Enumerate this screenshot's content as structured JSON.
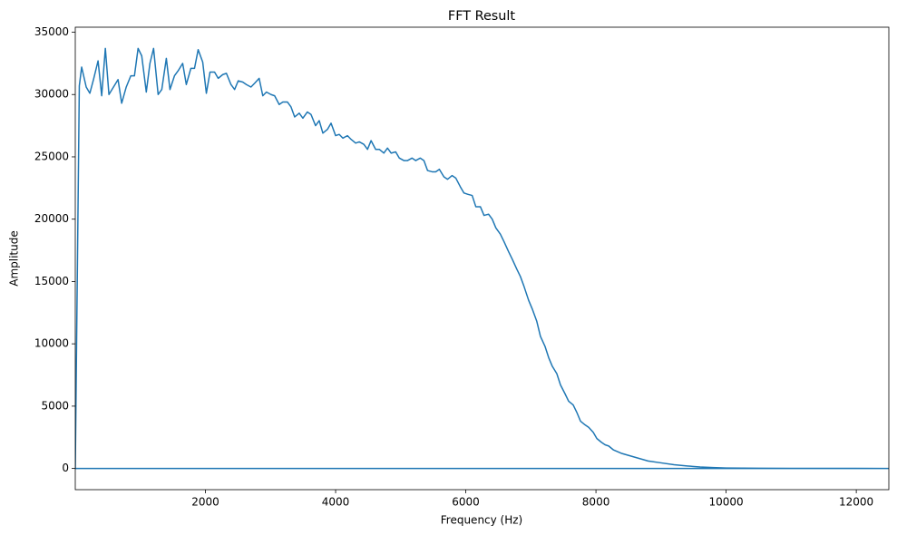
{
  "chart_data": {
    "type": "line",
    "title": "FFT Result",
    "x_label": "Frequency (Hz)",
    "y_label": "Amplitude",
    "xlim": [
      0,
      12500
    ],
    "ylim": [
      -1700,
      35400
    ],
    "xticks": [
      2000,
      4000,
      6000,
      8000,
      10000,
      12000
    ],
    "yticks": [
      0,
      5000,
      10000,
      15000,
      20000,
      25000,
      30000,
      35000
    ],
    "grid": false,
    "x": [
      0,
      62,
      98,
      168,
      224,
      280,
      350,
      406,
      462,
      517,
      587,
      657,
      713,
      783,
      853,
      909,
      965,
      1021,
      1091,
      1147,
      1203,
      1273,
      1329,
      1399,
      1455,
      1524,
      1580,
      1650,
      1706,
      1776,
      1832,
      1888,
      1958,
      2014,
      2070,
      2140,
      2196,
      2266,
      2322,
      2392,
      2448,
      2503,
      2573,
      2629,
      2699,
      2755,
      2825,
      2881,
      2937,
      3007,
      3063,
      3133,
      3189,
      3259,
      3315,
      3371,
      3441,
      3497,
      3566,
      3622,
      3692,
      3748,
      3804,
      3874,
      3930,
      4000,
      4056,
      4112,
      4182,
      4238,
      4308,
      4364,
      4434,
      4490,
      4545,
      4615,
      4671,
      4741,
      4797,
      4853,
      4923,
      4979,
      5049,
      5105,
      5175,
      5231,
      5301,
      5357,
      5413,
      5483,
      5538,
      5594,
      5664,
      5720,
      5790,
      5846,
      5916,
      5972,
      6028,
      6098,
      6154,
      6224,
      6280,
      6350,
      6406,
      6462,
      6531,
      6587,
      6657,
      6713,
      6783,
      6839,
      6895,
      6965,
      7021,
      7091,
      7147,
      7217,
      7273,
      7329,
      7399,
      7455,
      7524,
      7580,
      7650,
      7706,
      7762,
      7832,
      7888,
      7958,
      8014,
      8084,
      8140,
      8196,
      8266,
      8400,
      8600,
      8800,
      9000,
      9200,
      9400,
      9600,
      9800,
      10000,
      10500,
      11000,
      12000,
      12500,
      -12500
    ],
    "series": [
      {
        "color": "#1f77b4",
        "values": [
          0,
          30700,
          32200,
          30600,
          30100,
          31200,
          32700,
          29900,
          33700,
          30000,
          30600,
          31200,
          29300,
          30600,
          31500,
          31500,
          33700,
          33100,
          30200,
          32500,
          33700,
          30000,
          30400,
          32900,
          30400,
          31500,
          31900,
          32500,
          30800,
          32100,
          32100,
          33600,
          32600,
          30100,
          31800,
          31800,
          31300,
          31600,
          31700,
          30800,
          30400,
          31100,
          31000,
          30800,
          30600,
          30900,
          31300,
          29900,
          30200,
          30000,
          29900,
          29200,
          29400,
          29400,
          29000,
          28200,
          28500,
          28100,
          28600,
          28400,
          27500,
          27900,
          26900,
          27200,
          27700,
          26700,
          26800,
          26500,
          26700,
          26400,
          26100,
          26200,
          26000,
          25600,
          26300,
          25600,
          25600,
          25300,
          25700,
          25300,
          25400,
          24900,
          24700,
          24700,
          24900,
          24700,
          24900,
          24700,
          23900,
          23800,
          23800,
          24000,
          23400,
          23200,
          23500,
          23300,
          22600,
          22100,
          22000,
          21900,
          21000,
          21000,
          20300,
          20400,
          20000,
          19300,
          18800,
          18200,
          17400,
          16800,
          16000,
          15400,
          14600,
          13500,
          12800,
          11800,
          10600,
          9800,
          8900,
          8200,
          7600,
          6700,
          6000,
          5400,
          5100,
          4500,
          3800,
          3500,
          3300,
          2900,
          2400,
          2100,
          1900,
          1800,
          1500,
          1200,
          900,
          600,
          450,
          300,
          200,
          120,
          70,
          40,
          15,
          8,
          5,
          3,
          0
        ]
      }
    ]
  }
}
